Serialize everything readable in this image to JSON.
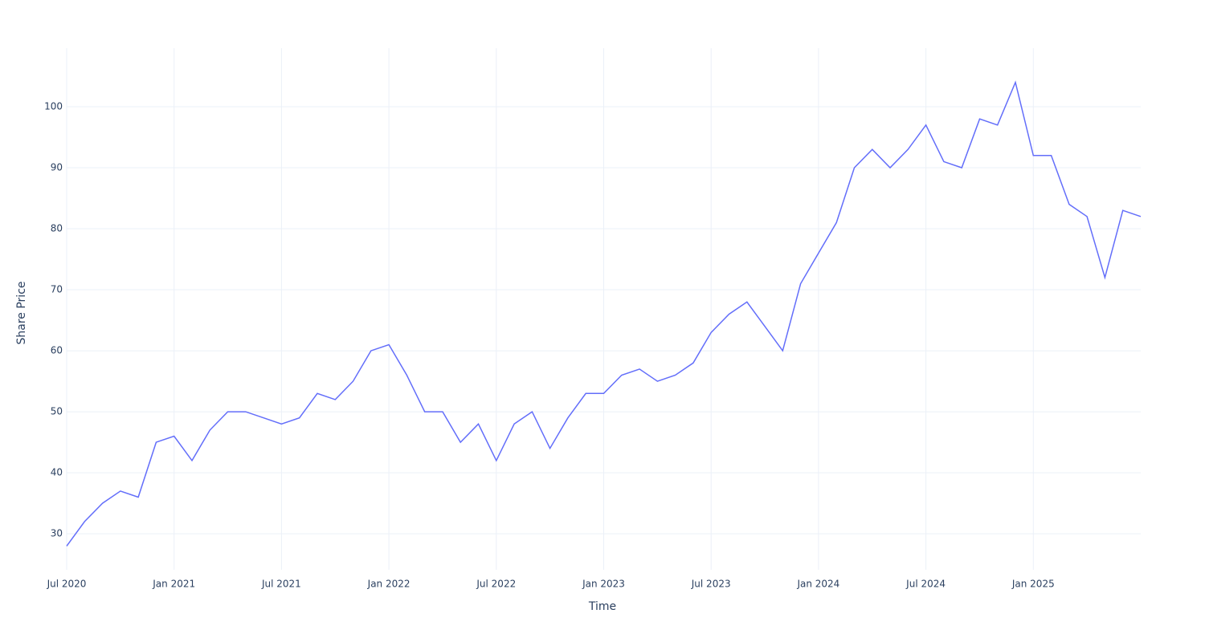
{
  "chart_data": {
    "type": "line",
    "x_label": "Time",
    "y_label": "Share Price",
    "x": [
      "2020-07",
      "2020-08",
      "2020-09",
      "2020-10",
      "2020-11",
      "2020-12",
      "2021-01",
      "2021-02",
      "2021-03",
      "2021-04",
      "2021-05",
      "2021-06",
      "2021-07",
      "2021-08",
      "2021-09",
      "2021-10",
      "2021-11",
      "2021-12",
      "2022-01",
      "2022-02",
      "2022-03",
      "2022-04",
      "2022-05",
      "2022-06",
      "2022-07",
      "2022-08",
      "2022-09",
      "2022-10",
      "2022-11",
      "2022-12",
      "2023-01",
      "2023-02",
      "2023-03",
      "2023-04",
      "2023-05",
      "2023-06",
      "2023-07",
      "2023-08",
      "2023-09",
      "2023-10",
      "2023-11",
      "2023-12",
      "2024-01",
      "2024-02",
      "2024-03",
      "2024-04",
      "2024-05",
      "2024-06",
      "2024-07",
      "2024-08",
      "2024-09",
      "2024-10",
      "2024-11",
      "2024-12",
      "2025-01",
      "2025-02",
      "2025-03",
      "2025-04",
      "2025-05",
      "2025-06",
      "2025-07"
    ],
    "series": [
      {
        "color": "#636efa",
        "values": [
          28,
          32,
          35,
          37,
          36,
          45,
          46,
          42,
          47,
          50,
          50,
          49,
          48,
          49,
          53,
          52,
          55,
          60,
          61,
          56,
          50,
          50,
          45,
          48,
          42,
          48,
          50,
          44,
          49,
          53,
          53,
          56,
          57,
          55,
          56,
          58,
          63,
          66,
          68,
          64,
          60,
          71,
          76,
          81,
          90,
          93,
          90,
          93,
          97,
          91,
          90,
          98,
          97,
          104,
          92,
          92,
          84,
          82,
          72,
          83,
          82
        ]
      }
    ],
    "xlim": [
      "2020-07",
      "2025-07"
    ],
    "xticks": [
      {
        "value": "2020-07",
        "label": "Jul 2020"
      },
      {
        "value": "2021-01",
        "label": "Jan 2021"
      },
      {
        "value": "2021-07",
        "label": "Jul 2021"
      },
      {
        "value": "2022-01",
        "label": "Jan 2022"
      },
      {
        "value": "2022-07",
        "label": "Jul 2022"
      },
      {
        "value": "2023-01",
        "label": "Jan 2023"
      },
      {
        "value": "2023-07",
        "label": "Jul 2023"
      },
      {
        "value": "2024-01",
        "label": "Jan 2024"
      },
      {
        "value": "2024-07",
        "label": "Jul 2024"
      },
      {
        "value": "2025-01",
        "label": "Jan 2025"
      }
    ],
    "ylim": [
      24.1,
      109.6
    ],
    "yticks": [
      30,
      40,
      50,
      60,
      70,
      80,
      90,
      100
    ],
    "grid": true
  }
}
